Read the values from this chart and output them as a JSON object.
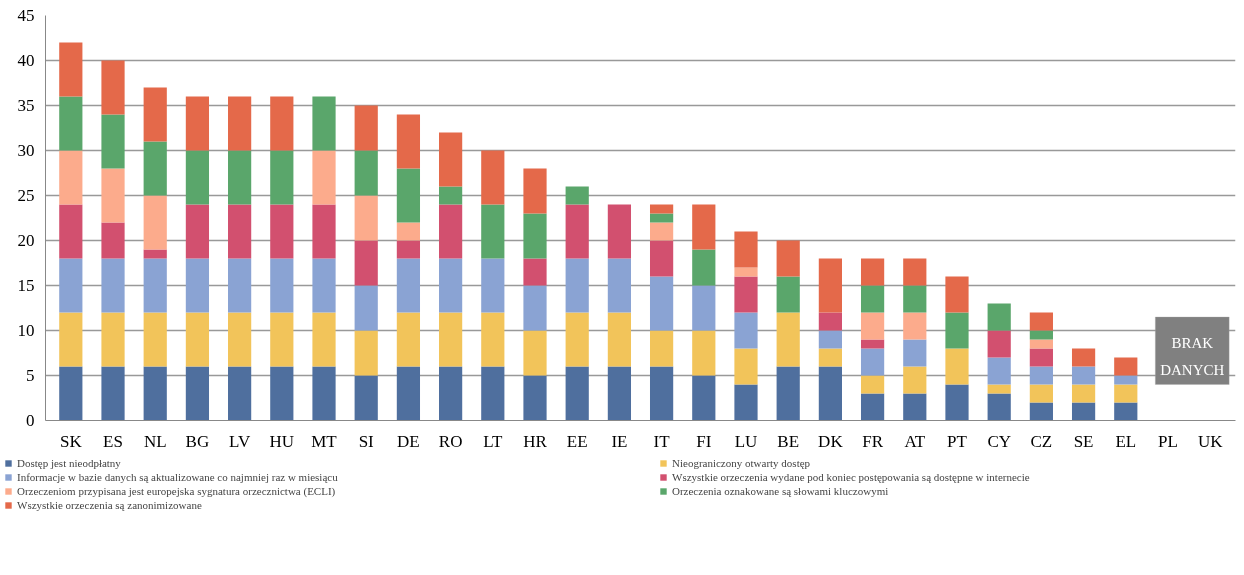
{
  "chart_data": {
    "type": "bar",
    "stacked": true,
    "categories": [
      "SK",
      "ES",
      "NL",
      "BG",
      "LV",
      "HU",
      "MT",
      "SI",
      "DE",
      "RO",
      "LT",
      "HR",
      "EE",
      "IE",
      "IT",
      "FI",
      "LU",
      "BE",
      "DK",
      "FR",
      "AT",
      "PT",
      "CY",
      "CZ",
      "SE",
      "EL",
      "PL",
      "UK"
    ],
    "series": [
      {
        "name": "Dostęp jest nieodpłatny",
        "color": "#4f6f9e",
        "values": [
          6,
          6,
          6,
          6,
          6,
          6,
          6,
          5,
          6,
          6,
          6,
          5,
          6,
          6,
          6,
          5,
          4,
          6,
          6,
          3,
          3,
          4,
          3,
          2,
          2,
          2,
          null,
          null
        ]
      },
      {
        "name": "Nieograniczony otwarty dostęp",
        "color": "#f2c45a",
        "values": [
          6,
          6,
          6,
          6,
          6,
          6,
          6,
          5,
          6,
          6,
          6,
          5,
          6,
          6,
          4,
          5,
          4,
          6,
          2,
          2,
          3,
          4,
          1,
          2,
          2,
          2,
          null,
          null
        ]
      },
      {
        "name": "Informacje w bazie danych są aktualizowane co najmniej raz w miesiącu",
        "color": "#8aa3d3",
        "values": [
          6,
          6,
          6,
          6,
          6,
          6,
          6,
          5,
          6,
          6,
          6,
          5,
          6,
          6,
          6,
          5,
          4,
          0,
          2,
          3,
          3,
          0,
          3,
          2,
          2,
          1,
          null,
          null
        ]
      },
      {
        "name": "Wszystkie orzeczenia wydane pod koniec postępowania są dostępne w internecie",
        "color": "#d2506f",
        "values": [
          6,
          4,
          1,
          6,
          6,
          6,
          6,
          5,
          2,
          6,
          0,
          3,
          6,
          6,
          4,
          0,
          4,
          0,
          2,
          1,
          0,
          0,
          3,
          2,
          0,
          0,
          null,
          null
        ]
      },
      {
        "name": "Orzeczeniom przypisana jest europejska sygnatura orzecznictwa (ECLI)",
        "color": "#fcab8c",
        "values": [
          6,
          6,
          6,
          0,
          0,
          0,
          6,
          5,
          2,
          0,
          0,
          0,
          0,
          0,
          2,
          0,
          1,
          0,
          0,
          3,
          3,
          0,
          0,
          1,
          0,
          0,
          null,
          null
        ]
      },
      {
        "name": "Orzeczenia oznakowane są słowami kluczowymi",
        "color": "#5aa66b",
        "values": [
          6,
          6,
          6,
          6,
          6,
          6,
          6,
          5,
          6,
          2,
          6,
          5,
          2,
          0,
          1,
          4,
          0,
          4,
          0,
          3,
          3,
          4,
          3,
          1,
          0,
          0,
          null,
          null
        ]
      },
      {
        "name": "Wszystkie orzeczenia są zanonimizowane",
        "color": "#e4694a",
        "values": [
          6,
          6,
          6,
          6,
          6,
          6,
          0,
          5,
          6,
          6,
          6,
          5,
          0,
          0,
          1,
          5,
          4,
          4,
          6,
          3,
          3,
          4,
          0,
          2,
          2,
          2,
          null,
          null
        ]
      }
    ],
    "ylim": [
      0,
      45
    ],
    "yticks": [
      0,
      5,
      10,
      15,
      20,
      25,
      30,
      35,
      40,
      45
    ],
    "grid": "y",
    "legend": "bottom",
    "annotations": [
      "BRAK DANYCH"
    ]
  }
}
